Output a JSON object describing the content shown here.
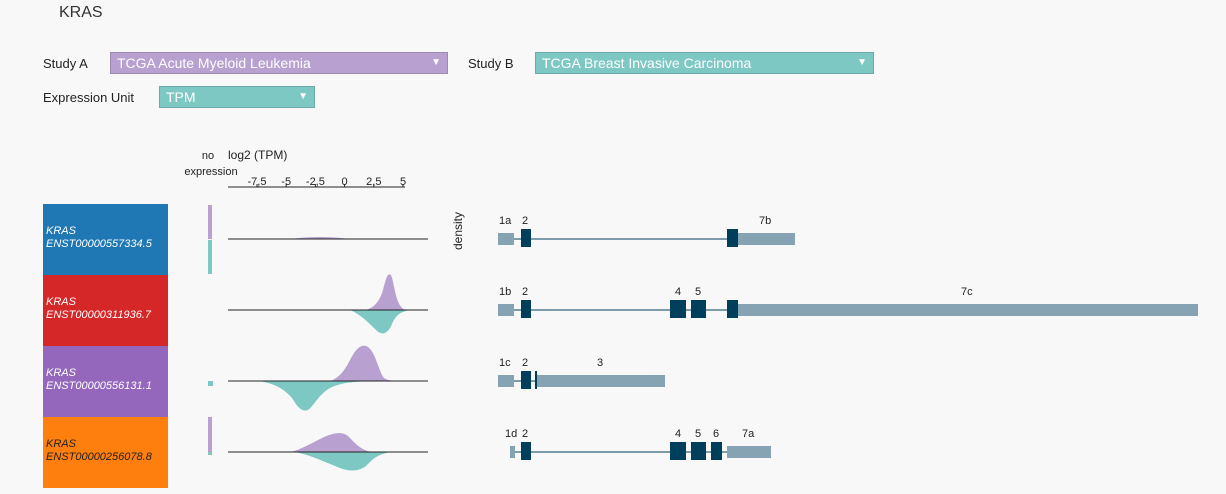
{
  "gene": "KRAS",
  "controls": {
    "study_a_label": "Study A",
    "study_a_value": "TCGA Acute Myeloid Leukemia",
    "study_b_label": "Study B",
    "study_b_value": "TCGA Breast Invasive Carcinoma",
    "unit_label": "Expression Unit",
    "unit_value": "TPM",
    "arrow": "▼"
  },
  "colors": {
    "study_a": "#b8a0d0",
    "study_b": "#7ec8c4",
    "exon": "#003f5c",
    "utr": "#86a3b3"
  },
  "axis": {
    "no_expression": [
      "no",
      "expression"
    ],
    "title": "log2 (TPM)",
    "ticks": [
      {
        "label": "-7,5",
        "value": -7.5
      },
      {
        "label": "-5",
        "value": -5
      },
      {
        "label": "-2,5",
        "value": -2.5
      },
      {
        "label": "0",
        "value": 0
      },
      {
        "label": "2,5",
        "value": 2.5
      },
      {
        "label": "5",
        "value": 5
      }
    ],
    "density_label": "density"
  },
  "transcripts": [
    {
      "gene": "KRAS",
      "id": "ENST00000557334.5",
      "color": "#1f77b4",
      "exon_labels": [
        "1a",
        "2",
        "7b"
      ]
    },
    {
      "gene": "KRAS",
      "id": "ENST00000311936.7",
      "color": "#d62728",
      "exon_labels": [
        "1b",
        "2",
        "4",
        "5",
        "7c"
      ]
    },
    {
      "gene": "KRAS",
      "id": "ENST00000556131.1",
      "color": "#9467bd",
      "exon_labels": [
        "1c",
        "2",
        "3"
      ]
    },
    {
      "gene": "KRAS",
      "id": "ENST00000256078.8",
      "color": "#ff7f0e",
      "exon_labels": [
        "1d",
        "2",
        "4",
        "5",
        "6",
        "7a"
      ]
    }
  ]
}
